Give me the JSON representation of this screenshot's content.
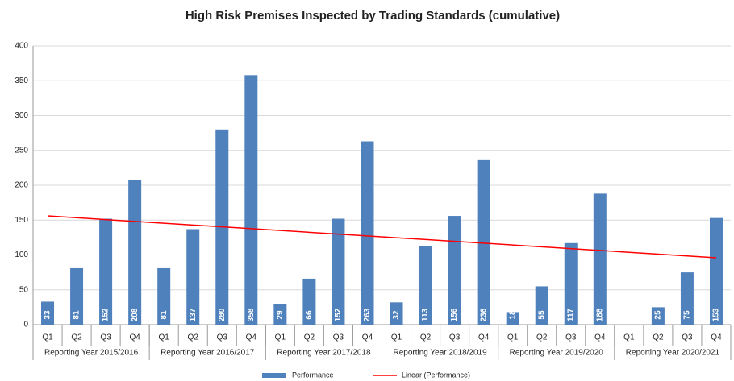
{
  "chart_data": {
    "type": "bar",
    "title": "High Risk Premises Inspected by Trading Standards (cumulative)",
    "categories": [
      "Q1",
      "Q2",
      "Q3",
      "Q4",
      "Q1",
      "Q2",
      "Q3",
      "Q4",
      "Q1",
      "Q2",
      "Q3",
      "Q4",
      "Q1",
      "Q2",
      "Q3",
      "Q4",
      "Q1",
      "Q2",
      "Q3",
      "Q4",
      "Q1",
      "Q2",
      "Q3",
      "Q4"
    ],
    "groups": [
      "Reporting Year 2015/2016",
      "Reporting Year 2016/2017",
      "Reporting Year 2017/2018",
      "Reporting Year 2018/2019",
      "Reporting Year 2019/2020",
      "Reporting Year 2020/2021"
    ],
    "series": [
      {
        "name": "Performance",
        "color": "#4f81bd",
        "values": [
          33,
          81,
          152,
          208,
          81,
          137,
          280,
          358,
          29,
          66,
          152,
          263,
          32,
          113,
          156,
          236,
          18,
          55,
          117,
          188,
          null,
          25,
          75,
          153
        ]
      }
    ],
    "trendline": {
      "name": "Linear (Performance)",
      "color": "#ff0000",
      "values": [
        156,
        96
      ]
    },
    "ylim": [
      0,
      400
    ],
    "yticks": [
      0,
      50,
      100,
      150,
      200,
      250,
      300,
      350,
      400
    ],
    "grid": true,
    "legend": "bottom"
  }
}
